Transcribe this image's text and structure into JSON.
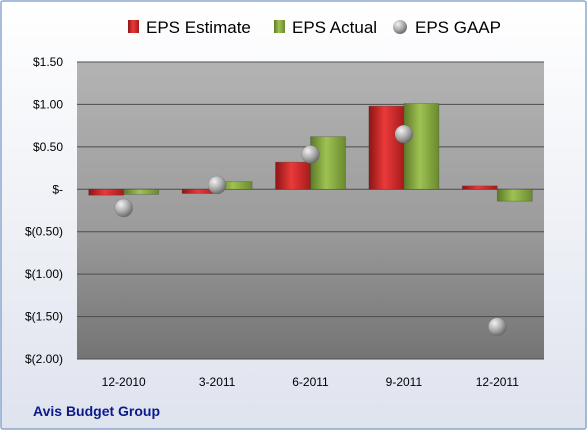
{
  "chart_data": {
    "type": "bar",
    "categories": [
      "12-2010",
      "3-2011",
      "6-2011",
      "9-2011",
      "12-2011"
    ],
    "series": [
      {
        "name": "EPS Estimate",
        "kind": "bar",
        "color": "#d42b2b",
        "values": [
          -0.07,
          -0.05,
          0.32,
          0.98,
          0.04
        ]
      },
      {
        "name": "EPS Actual",
        "kind": "bar",
        "color": "#86a93f",
        "values": [
          -0.06,
          0.09,
          0.62,
          1.01,
          -0.14
        ]
      },
      {
        "name": "EPS GAAP",
        "kind": "point",
        "color": "#a6a6a6",
        "values": [
          -0.22,
          0.05,
          0.41,
          0.65,
          -1.62
        ]
      }
    ],
    "ylim": [
      -2.0,
      1.5
    ],
    "yticks": [
      1.5,
      1.0,
      0.5,
      0,
      -0.5,
      -1.0,
      -1.5,
      -2.0
    ],
    "ytick_labels": [
      "$1.50",
      "$1.00",
      "$0.50",
      "$-",
      "$(0.50)",
      "$(1.00)",
      "$(1.50)",
      "$(2.00)"
    ],
    "grid": true,
    "legend_position": "top",
    "company": "Avis Budget Group"
  }
}
